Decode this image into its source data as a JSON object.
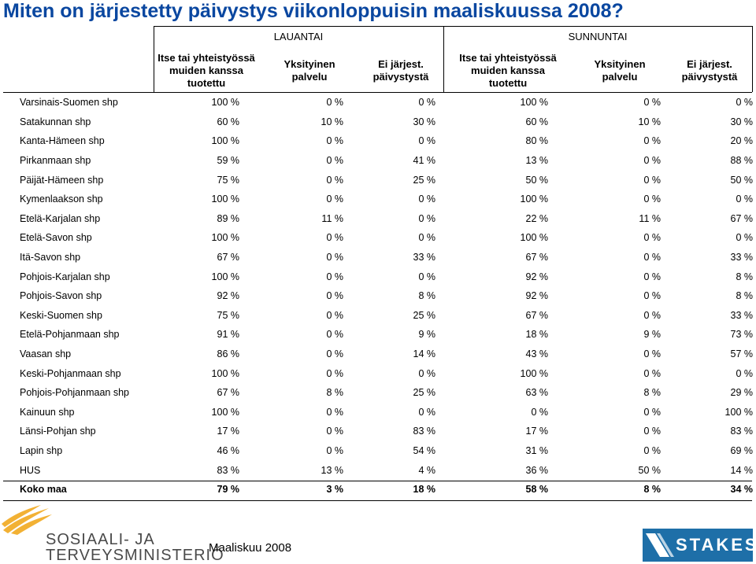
{
  "title": "Miten on järjestetty päivystys viikonloppuisin maaliskuussa 2008?",
  "groups": {
    "saturday": "LAUANTAI",
    "sunday": "SUNNUNTAI"
  },
  "subheaders": {
    "sat": [
      "Itse tai yhteistyössä muiden kanssa tuotettu",
      "Yksityinen palvelu",
      "Ei järjest. päivystystä"
    ],
    "sun": [
      "Itse tai yhteistyössä muiden kanssa tuotettu",
      "Yksityinen palvelu",
      "Ei järjest. päivystystä"
    ]
  },
  "rows": [
    {
      "name": "Varsinais-Suomen shp",
      "v": [
        "100 %",
        "0 %",
        "0 %",
        "100 %",
        "0 %",
        "0 %"
      ]
    },
    {
      "name": "Satakunnan shp",
      "v": [
        "60 %",
        "10 %",
        "30 %",
        "60 %",
        "10 %",
        "30 %"
      ]
    },
    {
      "name": "Kanta-Hämeen shp",
      "v": [
        "100 %",
        "0 %",
        "0 %",
        "80 %",
        "0 %",
        "20 %"
      ]
    },
    {
      "name": "Pirkanmaan shp",
      "v": [
        "59 %",
        "0 %",
        "41 %",
        "13 %",
        "0 %",
        "88 %"
      ]
    },
    {
      "name": "Päijät-Hämeen shp",
      "v": [
        "75 %",
        "0 %",
        "25 %",
        "50 %",
        "0 %",
        "50 %"
      ]
    },
    {
      "name": "Kymenlaakson shp",
      "v": [
        "100 %",
        "0 %",
        "0 %",
        "100 %",
        "0 %",
        "0 %"
      ]
    },
    {
      "name": "Etelä-Karjalan shp",
      "v": [
        "89 %",
        "11 %",
        "0 %",
        "22 %",
        "11 %",
        "67 %"
      ]
    },
    {
      "name": "Etelä-Savon shp",
      "v": [
        "100 %",
        "0 %",
        "0 %",
        "100 %",
        "0 %",
        "0 %"
      ]
    },
    {
      "name": "Itä-Savon shp",
      "v": [
        "67 %",
        "0 %",
        "33 %",
        "67 %",
        "0 %",
        "33 %"
      ]
    },
    {
      "name": "Pohjois-Karjalan shp",
      "v": [
        "100 %",
        "0 %",
        "0 %",
        "92 %",
        "0 %",
        "8 %"
      ]
    },
    {
      "name": "Pohjois-Savon shp",
      "v": [
        "92 %",
        "0 %",
        "8 %",
        "92 %",
        "0 %",
        "8 %"
      ]
    },
    {
      "name": "Keski-Suomen shp",
      "v": [
        "75 %",
        "0 %",
        "25 %",
        "67 %",
        "0 %",
        "33 %"
      ]
    },
    {
      "name": "Etelä-Pohjanmaan shp",
      "v": [
        "91 %",
        "0 %",
        "9 %",
        "18 %",
        "9 %",
        "73 %"
      ]
    },
    {
      "name": "Vaasan shp",
      "v": [
        "86 %",
        "0 %",
        "14 %",
        "43 %",
        "0 %",
        "57 %"
      ]
    },
    {
      "name": "Keski-Pohjanmaan shp",
      "v": [
        "100 %",
        "0 %",
        "0 %",
        "100 %",
        "0 %",
        "0 %"
      ]
    },
    {
      "name": "Pohjois-Pohjanmaan shp",
      "v": [
        "67 %",
        "8 %",
        "25 %",
        "63 %",
        "8 %",
        "29 %"
      ]
    },
    {
      "name": "Kainuun shp",
      "v": [
        "100 %",
        "0 %",
        "0 %",
        "0 %",
        "0 %",
        "100 %"
      ]
    },
    {
      "name": "Länsi-Pohjan shp",
      "v": [
        "17 %",
        "0 %",
        "83 %",
        "17 %",
        "0 %",
        "83 %"
      ]
    },
    {
      "name": "Lapin shp",
      "v": [
        "46 %",
        "0 %",
        "54 %",
        "31 %",
        "0 %",
        "69 %"
      ]
    },
    {
      "name": "HUS",
      "v": [
        "83 %",
        "13 %",
        "4 %",
        "36 %",
        "50 %",
        "14 %"
      ]
    }
  ],
  "total": {
    "name": "Koko maa",
    "v": [
      "79 %",
      "3 %",
      "18 %",
      "58 %",
      "8 %",
      "34 %"
    ]
  },
  "footer": {
    "date": "Maaliskuu 2008",
    "ministry_line1": "SOSIAALI- JA",
    "ministry_line2": "TERVEYSMINISTERIÖ",
    "stakes_logo": "STAKES"
  },
  "colors": {
    "title": "#0a47a0",
    "stakes": "#1e6fa8",
    "ministry_logo": "#f2b134"
  }
}
